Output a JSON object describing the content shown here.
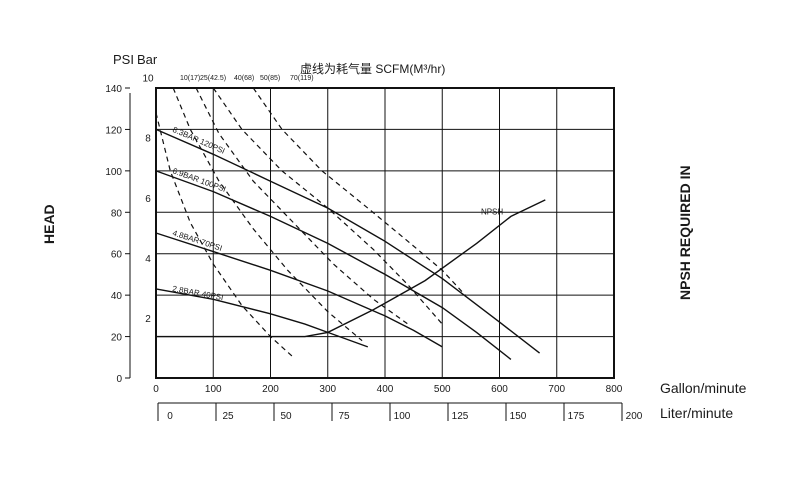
{
  "chart_data": {
    "type": "line",
    "title": "虚线为耗气量 SCFM(M³/hr)",
    "unit_label_psi": "PSI",
    "unit_label_bar": "Bar",
    "left_axis_label": "HEAD",
    "right_axis_label": "NPSH REQUIRED IN",
    "x_primary_label": "Gallon/minute",
    "x_secondary_label": "Liter/minute",
    "x_ticks": [
      0,
      100,
      200,
      300,
      400,
      500,
      600,
      700,
      800
    ],
    "x_secondary_ticks": [
      0,
      25,
      50,
      75,
      100,
      125,
      150,
      175,
      200
    ],
    "y_psi_ticks": [
      0,
      20,
      40,
      60,
      80,
      100,
      120,
      140
    ],
    "y_bar_ticks": [
      2,
      4,
      6,
      8,
      10
    ],
    "xlim": [
      0,
      800
    ],
    "ylim": [
      0,
      140
    ],
    "series": [
      {
        "name": "8.3BAR 120PSI",
        "points": [
          [
            0,
            120
          ],
          [
            100,
            108
          ],
          [
            200,
            95
          ],
          [
            300,
            82
          ],
          [
            400,
            66
          ],
          [
            500,
            48
          ],
          [
            600,
            27
          ],
          [
            670,
            12
          ]
        ]
      },
      {
        "name": "6.9BAR 100PSI",
        "points": [
          [
            0,
            100
          ],
          [
            100,
            90
          ],
          [
            200,
            78
          ],
          [
            300,
            65
          ],
          [
            400,
            50
          ],
          [
            500,
            34
          ],
          [
            560,
            22
          ],
          [
            620,
            9
          ]
        ]
      },
      {
        "name": "4.8BAR 70PSI",
        "points": [
          [
            0,
            70
          ],
          [
            100,
            61
          ],
          [
            200,
            52
          ],
          [
            300,
            42
          ],
          [
            400,
            30
          ],
          [
            450,
            23
          ],
          [
            500,
            15
          ]
        ]
      },
      {
        "name": "2.8BAR 40PSI",
        "points": [
          [
            0,
            43
          ],
          [
            100,
            38
          ],
          [
            200,
            31
          ],
          [
            260,
            26
          ],
          [
            300,
            22
          ],
          [
            370,
            15
          ]
        ]
      },
      {
        "name": "NPSH",
        "points": [
          [
            0,
            20
          ],
          [
            260,
            20
          ],
          [
            300,
            22
          ],
          [
            380,
            33
          ],
          [
            470,
            47
          ],
          [
            560,
            65
          ],
          [
            620,
            78
          ],
          [
            680,
            86
          ]
        ]
      }
    ],
    "air_consumption_label_lines": [
      "10(17)",
      "25(42.5)",
      "40(68)",
      "50(85)",
      "70(119)"
    ],
    "air_consumption_curves": [
      {
        "name": "10(17)",
        "points": [
          [
            0,
            128
          ],
          [
            25,
            100
          ],
          [
            60,
            75
          ],
          [
            100,
            55
          ],
          [
            150,
            35
          ],
          [
            200,
            20
          ],
          [
            240,
            10
          ]
        ]
      },
      {
        "name": "25(42.5)",
        "points": [
          [
            30,
            140
          ],
          [
            60,
            120
          ],
          [
            110,
            95
          ],
          [
            170,
            72
          ],
          [
            230,
            52
          ],
          [
            300,
            32
          ],
          [
            360,
            18
          ]
        ]
      },
      {
        "name": "40(68)",
        "points": [
          [
            70,
            140
          ],
          [
            110,
            118
          ],
          [
            170,
            95
          ],
          [
            240,
            75
          ],
          [
            310,
            55
          ],
          [
            380,
            38
          ],
          [
            440,
            26
          ]
        ]
      },
      {
        "name": "50(85)",
        "points": [
          [
            100,
            140
          ],
          [
            150,
            120
          ],
          [
            220,
            100
          ],
          [
            300,
            82
          ],
          [
            380,
            62
          ],
          [
            440,
            45
          ],
          [
            500,
            26
          ]
        ]
      },
      {
        "name": "70(119)",
        "points": [
          [
            170,
            140
          ],
          [
            220,
            120
          ],
          [
            290,
            100
          ],
          [
            370,
            82
          ],
          [
            440,
            66
          ],
          [
            500,
            52
          ],
          [
            540,
            40
          ]
        ]
      }
    ]
  }
}
